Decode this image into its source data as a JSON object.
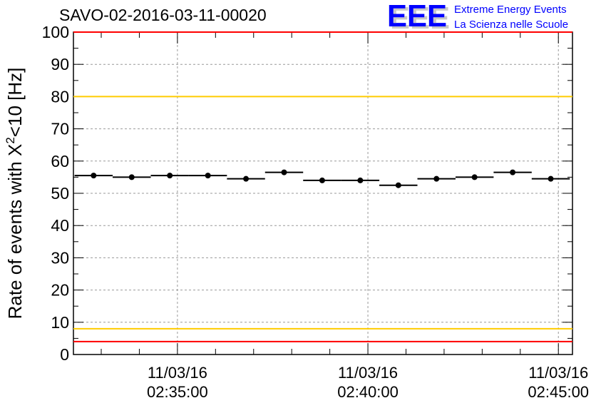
{
  "chart_data": {
    "type": "scatter",
    "title": "SAVO-02-2016-03-11-00020",
    "logo": {
      "mark": "EEE",
      "line1": "Extreme Energy Events",
      "line2": "La Scienza nelle Scuole"
    },
    "ylabel_prefix": "Rate of events with X",
    "ylabel_sup": "2",
    "ylabel_suffix": "<10 [Hz]",
    "ylim": [
      0,
      100
    ],
    "yticks": [
      "0",
      "10",
      "20",
      "30",
      "40",
      "50",
      "60",
      "70",
      "80",
      "90",
      "100"
    ],
    "xlim_minutes": [
      -2.73,
      10.37
    ],
    "xticks": [
      {
        "minute": 0,
        "date": "11/03/16",
        "time": "02:35:00"
      },
      {
        "minute": 5,
        "date": "11/03/16",
        "time": "02:40:00"
      },
      {
        "minute": 10,
        "date": "11/03/16",
        "time": "02:45:00"
      }
    ],
    "grid": true,
    "bin_width_minutes": 1,
    "x_minutes": [
      -2.2,
      -1.2,
      -0.2,
      0.8,
      1.8,
      2.8,
      3.8,
      4.8,
      5.8,
      6.8,
      7.8,
      8.8,
      9.8
    ],
    "values": [
      55.5,
      55,
      55.5,
      55.5,
      54.5,
      56.5,
      54,
      54,
      52.5,
      54.5,
      55,
      56.5,
      54.5
    ],
    "reference_lines": [
      {
        "value": 100,
        "color": "#ff0000"
      },
      {
        "value": 80,
        "color": "#ffcc00"
      },
      {
        "value": 8,
        "color": "#ffcc00"
      },
      {
        "value": 4,
        "color": "#ff0000"
      }
    ]
  }
}
